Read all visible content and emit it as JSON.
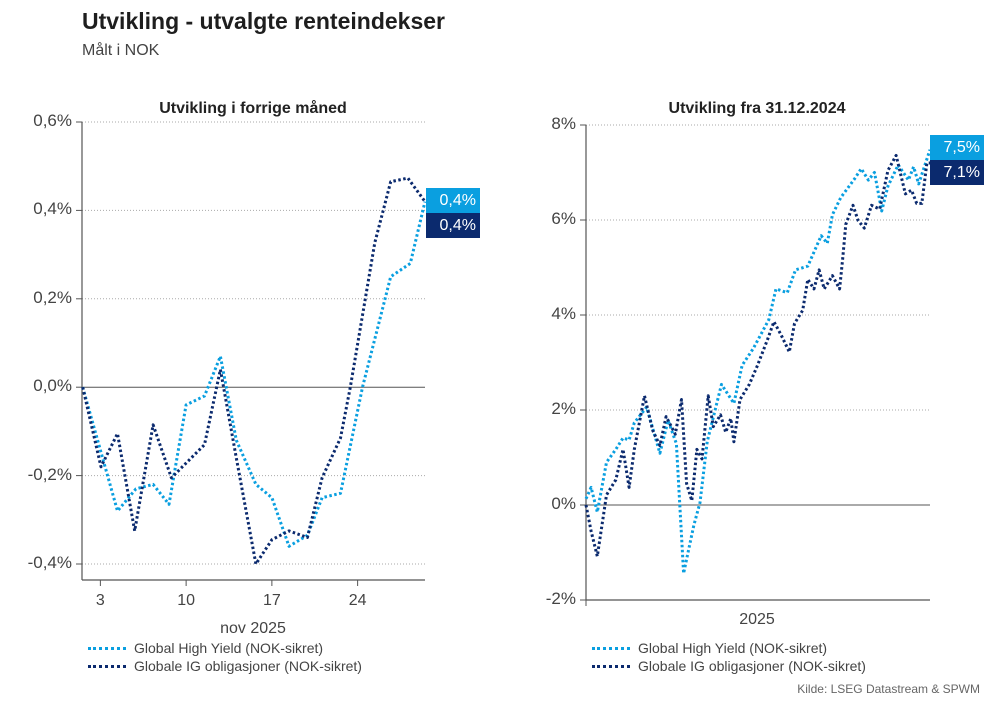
{
  "title": "Utvikling - utvalgte renteindekser",
  "subtitle": "Målt i NOK",
  "source": "Kilde: LSEG Datastream & SPWM",
  "colors": {
    "high_yield": "#0A9FE0",
    "ig": "#0B2A6E"
  },
  "chart_data": [
    {
      "type": "line",
      "title": "Utvikling i forrige måned",
      "xlabel": "nov 2025",
      "x_ticks": [
        3,
        10,
        17,
        24
      ],
      "x_tick_labels": [
        "3",
        "10",
        "17",
        "24"
      ],
      "xlim": [
        1.5,
        29.5
      ],
      "ylim": [
        -0.4,
        0.6
      ],
      "y_ticks": [
        -0.4,
        -0.2,
        0.0,
        0.2,
        0.4,
        0.6
      ],
      "y_tick_labels": [
        "-0,4%",
        "-0,2%",
        "0,0%",
        "0,2%",
        "0,4%",
        "0,6%"
      ],
      "grid": true,
      "legend_position": "bottom",
      "end_labels": [
        "0,4%",
        "0,4%"
      ],
      "series": [
        {
          "name": "Global High Yield (NOK-sikret)",
          "color": "#0A9FE0",
          "x": [
            1.56,
            4.4,
            5.9,
            7.3,
            8.6,
            10,
            11.5,
            12.8,
            14.1,
            15.7,
            17,
            18.4,
            19.9,
            21.1,
            22.6,
            24.4,
            26.7,
            28.3,
            29.5
          ],
          "y": [
            0,
            -0.28,
            -0.23,
            -0.22,
            -0.265,
            -0.04,
            -0.02,
            0.07,
            -0.12,
            -0.22,
            -0.25,
            -0.36,
            -0.335,
            -0.25,
            -0.24,
            0,
            0.25,
            0.28,
            0.42
          ]
        },
        {
          "name": "Globale IG obligasjoner (NOK-sikret)",
          "color": "#0B2A6E",
          "x": [
            1.56,
            3.05,
            4.4,
            5.8,
            7.3,
            8.8,
            11.5,
            12.8,
            14.1,
            15.7,
            17,
            18.4,
            19.9,
            21.1,
            22.6,
            23.4,
            25.4,
            26.7,
            28.1,
            29.5
          ],
          "y": [
            0,
            -0.18,
            -0.105,
            -0.325,
            -0.085,
            -0.205,
            -0.13,
            0.04,
            -0.16,
            -0.4,
            -0.345,
            -0.325,
            -0.34,
            -0.205,
            -0.115,
            0,
            0.327,
            0.465,
            0.473,
            0.42
          ]
        }
      ]
    },
    {
      "type": "line",
      "title": "Utvikling fra 31.12.2024",
      "xlabel": "2025",
      "xlim": [
        0,
        335
      ],
      "ylim": [
        -2,
        8
      ],
      "y_ticks": [
        -2,
        0,
        2,
        4,
        6,
        8
      ],
      "y_tick_labels": [
        "-2%",
        "0%",
        "2%",
        "4%",
        "6%",
        "8%"
      ],
      "grid": true,
      "legend_position": "bottom",
      "end_labels": [
        "7,5%",
        "7,1%"
      ],
      "series": [
        {
          "name": "Global High Yield (NOK-sikret)",
          "color": "#0A9FE0",
          "x": [
            0,
            5,
            11,
            20,
            29,
            36,
            42,
            47,
            59,
            72,
            80,
            88,
            95,
            105,
            111,
            118,
            132,
            144,
            152,
            163,
            178,
            185,
            196,
            204,
            216,
            229,
            235,
            240,
            248,
            262,
            268,
            275,
            281,
            288,
            294,
            304,
            314,
            319,
            324,
            335
          ],
          "y": [
            0.13,
            0.37,
            -0.15,
            0.9,
            1.17,
            1.41,
            1.37,
            1.73,
            2.06,
            1.09,
            1.78,
            1.29,
            -1.44,
            -0.43,
            0.05,
            1.33,
            2.54,
            2.14,
            2.94,
            3.3,
            3.9,
            4.55,
            4.47,
            4.95,
            5.03,
            5.67,
            5.51,
            6.11,
            6.47,
            6.88,
            7.08,
            6.84,
            7.0,
            6.19,
            6.71,
            7.16,
            6.84,
            7.12,
            6.76,
            7.48
          ]
        },
        {
          "name": "Globale IG obligasjoner (NOK-sikret)",
          "color": "#0B2A6E",
          "x": [
            0,
            5,
            11,
            20,
            29,
            36,
            42,
            47,
            57,
            65,
            72,
            78,
            87,
            93,
            98,
            103,
            108,
            113,
            119,
            124,
            131,
            136,
            141,
            144,
            150,
            159,
            167,
            177,
            183,
            190,
            198,
            203,
            211,
            216,
            222,
            227,
            232,
            240,
            247,
            250,
            253,
            260,
            265,
            271,
            278,
            286,
            294,
            302,
            311,
            317,
            322,
            327,
            332,
            335
          ],
          "y": [
            0,
            -0.55,
            -1.08,
            0.21,
            0.53,
            1.17,
            0.37,
            1.17,
            2.3,
            1.57,
            1.25,
            1.86,
            1.49,
            2.22,
            0.45,
            0.09,
            1.17,
            0.97,
            2.3,
            1.65,
            1.9,
            1.53,
            1.82,
            1.33,
            2.22,
            2.54,
            2.94,
            3.5,
            3.86,
            3.58,
            3.22,
            3.82,
            4.1,
            4.75,
            4.55,
            4.95,
            4.55,
            4.83,
            4.55,
            5.19,
            5.91,
            6.31,
            5.99,
            5.83,
            6.31,
            6.23,
            7.04,
            7.36,
            6.55,
            6.63,
            6.35,
            6.35,
            7.2,
            7.2
          ]
        }
      ]
    }
  ]
}
